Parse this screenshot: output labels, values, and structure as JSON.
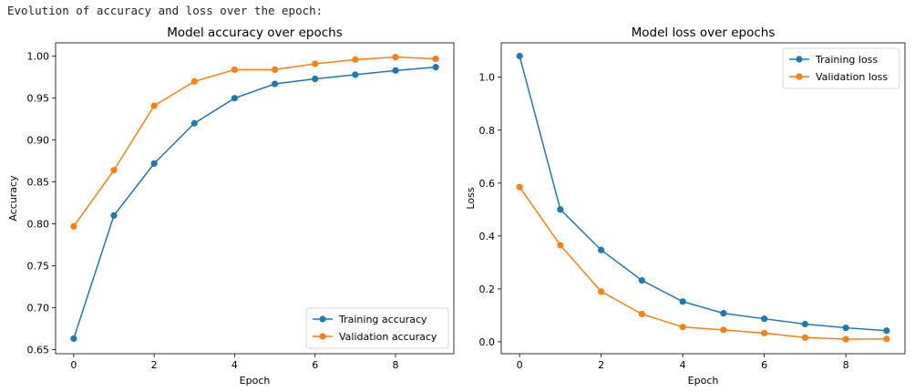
{
  "output_header": "Evolution of accuracy and loss over the epoch:",
  "chart_data": [
    {
      "type": "line",
      "title": "Model accuracy over epochs",
      "xlabel": "Epoch",
      "ylabel": "Accuracy",
      "x": [
        0,
        1,
        2,
        3,
        4,
        5,
        6,
        7,
        8,
        9
      ],
      "xlim": [
        -0.45,
        9.45
      ],
      "ylim": [
        0.645,
        1.016
      ],
      "xticks": [
        0,
        2,
        4,
        6,
        8
      ],
      "yticks": [
        0.65,
        0.7,
        0.75,
        0.8,
        0.85,
        0.9,
        0.95,
        1.0
      ],
      "ytick_labels": [
        "0.65",
        "0.70",
        "0.75",
        "0.80",
        "0.85",
        "0.90",
        "0.95",
        "1.00"
      ],
      "legend_position": "lower-right",
      "grid": false,
      "series": [
        {
          "name": "Training accuracy",
          "color": "#1f77b4",
          "marker": "circle",
          "values": [
            0.663,
            0.81,
            0.872,
            0.92,
            0.95,
            0.967,
            0.973,
            0.978,
            0.983,
            0.987
          ]
        },
        {
          "name": "Validation accuracy",
          "color": "#ff7f0e",
          "marker": "circle",
          "values": [
            0.797,
            0.864,
            0.941,
            0.97,
            0.984,
            0.984,
            0.991,
            0.996,
            0.999,
            0.997
          ]
        }
      ]
    },
    {
      "type": "line",
      "title": "Model loss over epochs",
      "xlabel": "Epoch",
      "ylabel": "Loss",
      "x": [
        0,
        1,
        2,
        3,
        4,
        5,
        6,
        7,
        8,
        9
      ],
      "xlim": [
        -0.45,
        9.45
      ],
      "ylim": [
        -0.045,
        1.13
      ],
      "xticks": [
        0,
        2,
        4,
        6,
        8
      ],
      "yticks": [
        0.0,
        0.2,
        0.4,
        0.6,
        0.8,
        1.0
      ],
      "ytick_labels": [
        "0.0",
        "0.2",
        "0.4",
        "0.6",
        "0.8",
        "1.0"
      ],
      "legend_position": "upper-right",
      "grid": false,
      "series": [
        {
          "name": "Training loss",
          "color": "#1f77b4",
          "marker": "circle",
          "values": [
            1.08,
            0.5,
            0.347,
            0.232,
            0.152,
            0.108,
            0.087,
            0.067,
            0.053,
            0.042
          ]
        },
        {
          "name": "Validation loss",
          "color": "#ff7f0e",
          "marker": "circle",
          "values": [
            0.585,
            0.365,
            0.19,
            0.105,
            0.056,
            0.045,
            0.033,
            0.016,
            0.01,
            0.011
          ]
        }
      ]
    }
  ]
}
